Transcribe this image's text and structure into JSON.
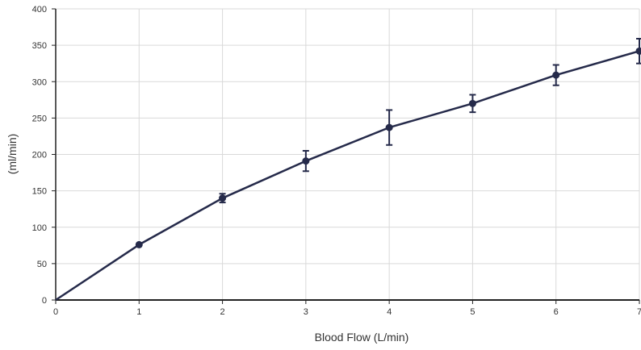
{
  "chart_data": {
    "type": "line",
    "title": "",
    "xlabel": "Blood Flow (L/min)",
    "ylabel": "(ml/min)",
    "xlim": [
      0,
      7
    ],
    "ylim": [
      0,
      400
    ],
    "xticks": [
      "0",
      "1",
      "2",
      "3",
      "4",
      "5",
      "6",
      "7"
    ],
    "yticks": [
      "0",
      "50",
      "100",
      "150",
      "200",
      "250",
      "300",
      "350",
      "400"
    ],
    "grid": true,
    "legend": "none",
    "colors": {
      "line": "#252a4a",
      "grid": "#d9d9d9",
      "axis": "#222222"
    },
    "series": [
      {
        "x": [
          0,
          1,
          2,
          3,
          4,
          5,
          6,
          7
        ],
        "values": [
          0,
          76,
          140,
          191,
          237,
          270,
          309,
          342
        ],
        "error": [
          null,
          null,
          6,
          14,
          24,
          12,
          14,
          17
        ]
      }
    ]
  }
}
